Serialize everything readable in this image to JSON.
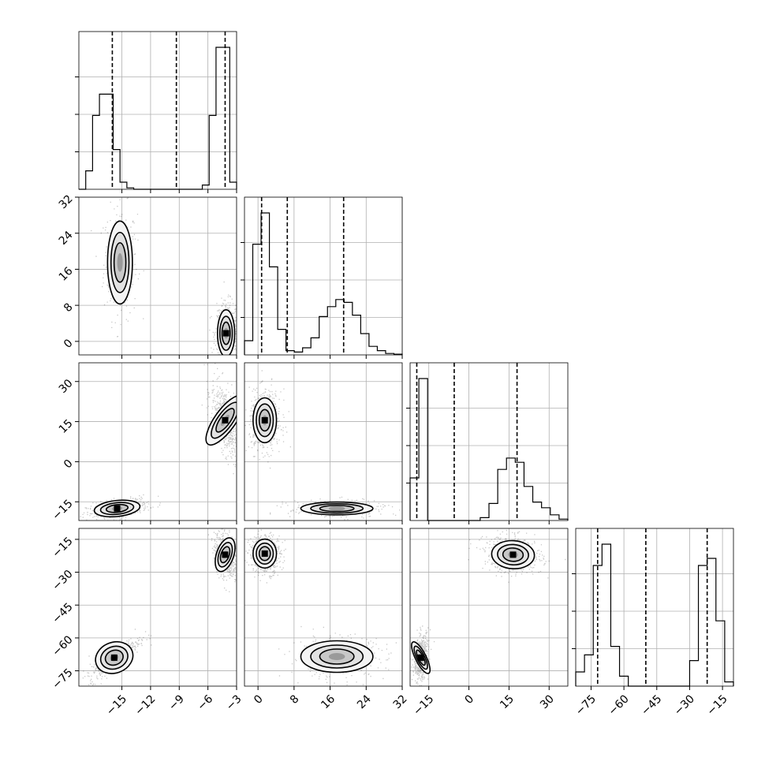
{
  "chart_data": {
    "type": "corner",
    "grid": true,
    "parameters": [
      {
        "key": "p0",
        "range": [
          -19.5,
          -3
        ],
        "ticks": [
          -15,
          -12,
          -9,
          -6,
          -3
        ],
        "tick_labels": [
          "−15",
          "−12",
          "−9",
          "−6",
          "−3"
        ],
        "quantiles": [
          -16.0,
          -9.3,
          -4.2
        ],
        "histogram": [
          0,
          0.13,
          0.52,
          0.67,
          0.67,
          0.28,
          0.05,
          0.01,
          0,
          0,
          0,
          0,
          0,
          0,
          0,
          0,
          0,
          0,
          0.03,
          0.52,
          1.0,
          1.0,
          0.05
        ]
      },
      {
        "key": "p1",
        "range": [
          -3,
          32
        ],
        "ticks": [
          0,
          8,
          16,
          24,
          32
        ],
        "tick_labels": [
          "0",
          "8",
          "16",
          "24",
          "32"
        ],
        "quantiles": [
          0.8,
          6.5,
          19.0
        ],
        "histogram": [
          0.1,
          0.78,
          1.0,
          0.62,
          0.18,
          0.03,
          0.02,
          0.05,
          0.12,
          0.27,
          0.34,
          0.39,
          0.37,
          0.28,
          0.15,
          0.06,
          0.03,
          0.01,
          0.005
        ]
      },
      {
        "key": "p2",
        "range": [
          -22,
          37
        ],
        "ticks": [
          -15,
          0,
          15,
          30
        ],
        "tick_labels": [
          "−15",
          "0",
          "15",
          "30"
        ],
        "quantiles": [
          -19.5,
          -5.5,
          18.0
        ],
        "histogram": [
          0.3,
          1.0,
          0,
          0,
          0,
          0,
          0,
          0,
          0.02,
          0.12,
          0.36,
          0.44,
          0.41,
          0.24,
          0.13,
          0.09,
          0.04,
          0.01
        ]
      },
      {
        "key": "p3",
        "range": [
          -82,
          -10
        ],
        "ticks": [
          -75,
          -60,
          -45,
          -30,
          -15
        ],
        "tick_labels": [
          "−75",
          "−60",
          "−45",
          "−30",
          "−15"
        ],
        "quantiles": [
          -72.0,
          -50.0,
          -22.0
        ],
        "histogram": [
          0.1,
          0.22,
          0.85,
          1.0,
          0.28,
          0.07,
          0,
          0,
          0,
          0,
          0,
          0,
          0,
          0.18,
          0.85,
          0.9,
          0.46,
          0.03
        ]
      }
    ],
    "pairs": [
      {
        "x": 0,
        "y": 1,
        "clusters": [
          {
            "cx": -15.2,
            "cy": 17.5,
            "sx": 0.65,
            "sy": 4.6,
            "rho": 0,
            "w": 0.55
          },
          {
            "cx": -4.1,
            "cy": 1.8,
            "sx": 0.45,
            "sy": 2.6,
            "rho": 0,
            "w": 1.0
          }
        ]
      },
      {
        "x": 0,
        "y": 2,
        "clusters": [
          {
            "cx": -15.5,
            "cy": -17.5,
            "sx": 1.2,
            "sy": 1.5,
            "rho": 0.5,
            "w": 0.8
          },
          {
            "cx": -4.2,
            "cy": 15.5,
            "sx": 0.55,
            "sy": 5.5,
            "rho": -0.6,
            "w": 1.0
          }
        ]
      },
      {
        "x": 0,
        "y": 3,
        "clusters": [
          {
            "cx": -15.8,
            "cy": -69.0,
            "sx": 1.0,
            "sy": 3.5,
            "rho": 0.85,
            "w": 0.8
          },
          {
            "cx": -4.2,
            "cy": -22.0,
            "sx": 0.45,
            "sy": 4.0,
            "rho": -0.3,
            "w": 1.0
          }
        ]
      },
      {
        "x": 1,
        "y": 2,
        "clusters": [
          {
            "cx": 1.5,
            "cy": 15.5,
            "sx": 1.3,
            "sy": 4.2,
            "rho": 0,
            "w": 1.0
          },
          {
            "cx": 17.5,
            "cy": -17.5,
            "sx": 4.0,
            "sy": 1.2,
            "rho": 0,
            "w": 0.6
          }
        ]
      },
      {
        "x": 1,
        "y": 3,
        "clusters": [
          {
            "cx": 1.5,
            "cy": -21.5,
            "sx": 1.3,
            "sy": 3.3,
            "rho": 0,
            "w": 1.0
          },
          {
            "cx": 17.5,
            "cy": -68.5,
            "sx": 4.0,
            "sy": 3.6,
            "rho": 0,
            "w": 0.55
          }
        ]
      },
      {
        "x": 2,
        "y": 3,
        "clusters": [
          {
            "cx": -18.0,
            "cy": -69.0,
            "sx": 1.0,
            "sy": 4.0,
            "rho": 0.3,
            "w": 0.9
          },
          {
            "cx": 16.5,
            "cy": -22.0,
            "sx": 4.0,
            "sy": 3.2,
            "rho": -0.15,
            "w": 1.0
          }
        ]
      }
    ]
  }
}
